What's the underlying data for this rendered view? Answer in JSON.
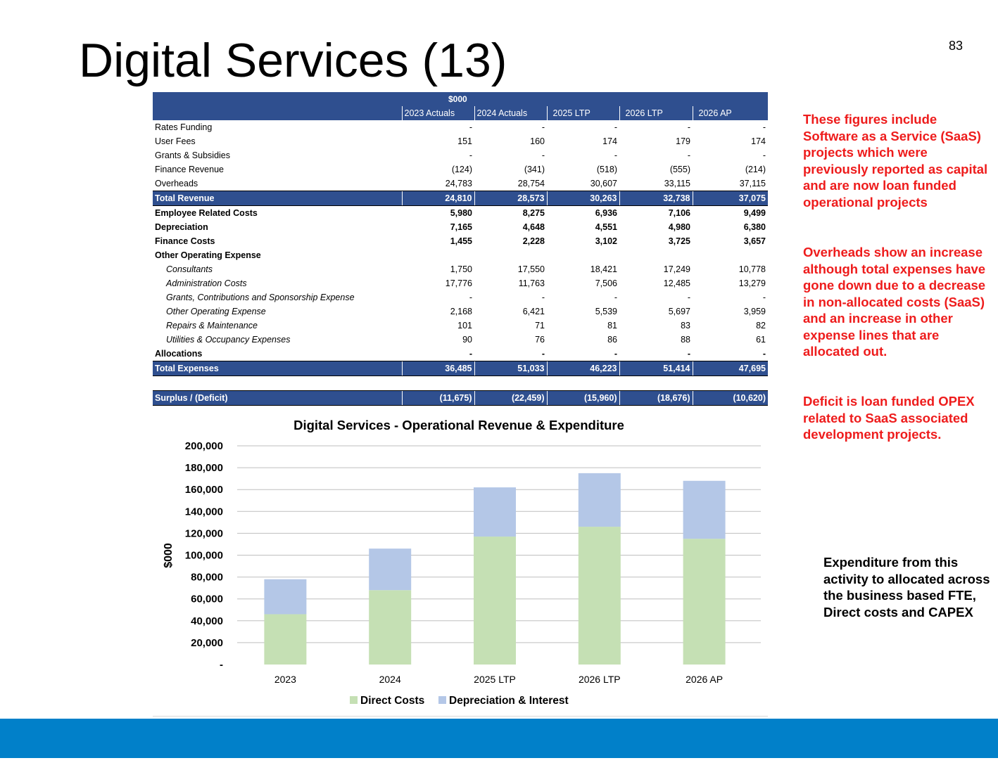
{
  "title": "Digital Services (13)",
  "page_number": "83",
  "table": {
    "unit_header": "$000",
    "columns": [
      "2023 Actuals",
      "2024 Actuals",
      "2025 LTP",
      "2026 LTP",
      "2026 AP"
    ],
    "rows": [
      {
        "label": "Rates Funding",
        "style": "normal",
        "values": [
          "-",
          "-",
          "-",
          "-",
          "-"
        ]
      },
      {
        "label": "User Fees",
        "style": "normal",
        "values": [
          "151",
          "160",
          "174",
          "179",
          "174"
        ]
      },
      {
        "label": "Grants & Subsidies",
        "style": "normal",
        "values": [
          "-",
          "-",
          "-",
          "-",
          "-"
        ]
      },
      {
        "label": "Finance Revenue",
        "style": "normal",
        "values": [
          "(124)",
          "(341)",
          "(518)",
          "(555)",
          "(214)"
        ]
      },
      {
        "label": "Overheads",
        "style": "normal",
        "values": [
          "24,783",
          "28,754",
          "30,607",
          "33,115",
          "37,115"
        ]
      },
      {
        "label": "Total Revenue",
        "style": "total",
        "values": [
          "24,810",
          "28,573",
          "30,263",
          "32,738",
          "37,075"
        ]
      },
      {
        "label": "Employee Related Costs",
        "style": "bold",
        "values": [
          "5,980",
          "8,275",
          "6,936",
          "7,106",
          "9,499"
        ]
      },
      {
        "label": "Depreciation",
        "style": "bold",
        "values": [
          "7,165",
          "4,648",
          "4,551",
          "4,980",
          "6,380"
        ]
      },
      {
        "label": "Finance Costs",
        "style": "bold",
        "values": [
          "1,455",
          "2,228",
          "3,102",
          "3,725",
          "3,657"
        ]
      },
      {
        "label": "Other Operating  Expense",
        "style": "bold",
        "values": [
          "",
          "",
          "",
          "",
          ""
        ]
      },
      {
        "label": "Consultants",
        "style": "indent",
        "values": [
          "1,750",
          "17,550",
          "18,421",
          "17,249",
          "10,778"
        ]
      },
      {
        "label": "Administration Costs",
        "style": "indent",
        "values": [
          "17,776",
          "11,763",
          "7,506",
          "12,485",
          "13,279"
        ]
      },
      {
        "label": "Grants, Contributions and Sponsorship Expense",
        "style": "indent",
        "values": [
          "-",
          "-",
          "-",
          "-",
          "-"
        ]
      },
      {
        "label": "Other Operating Expense",
        "style": "indent",
        "values": [
          "2,168",
          "6,421",
          "5,539",
          "5,697",
          "3,959"
        ]
      },
      {
        "label": "Repairs & Maintenance",
        "style": "indent",
        "values": [
          "101",
          "71",
          "81",
          "83",
          "82"
        ]
      },
      {
        "label": "Utilities & Occupancy Expenses",
        "style": "indent",
        "values": [
          "90",
          "76",
          "86",
          "88",
          "61"
        ]
      },
      {
        "label": "Allocations",
        "style": "bold",
        "values": [
          "-",
          "-",
          "-",
          "-",
          "-"
        ]
      },
      {
        "label": "Total Expenses",
        "style": "total",
        "values": [
          "36,485",
          "51,033",
          "46,223",
          "51,414",
          "47,695"
        ]
      },
      {
        "label": "",
        "style": "spacer",
        "values": [
          "",
          "",
          "",
          "",
          ""
        ]
      },
      {
        "label": "Surplus / (Deficit)",
        "style": "total",
        "values": [
          "(11,675)",
          "(22,459)",
          "(15,960)",
          "(18,676)",
          "(10,620)"
        ]
      }
    ]
  },
  "chart_data": {
    "type": "bar",
    "stacked": true,
    "title": "Digital Services - Operational Revenue & Expenditure",
    "ylabel": "$000",
    "xlabel": "",
    "categories": [
      "2023",
      "2024",
      "2025 LTP",
      "2026 LTP",
      "2026 AP"
    ],
    "series": [
      {
        "name": "Direct Costs",
        "color": "#c5e0b4",
        "values": [
          46000,
          68000,
          117000,
          126000,
          115000
        ]
      },
      {
        "name": "Depreciation & Interest",
        "color": "#b4c7e7",
        "values": [
          32000,
          38000,
          45000,
          49000,
          53000
        ]
      }
    ],
    "ylim": [
      0,
      200000
    ],
    "yticks": [
      "-",
      "20,000",
      "40,000",
      "60,000",
      "80,000",
      "100,000",
      "120,000",
      "140,000",
      "160,000",
      "180,000",
      "200,000"
    ],
    "grid": true,
    "legend_position": "bottom"
  },
  "notes": {
    "red": [
      "These figures include Software as a Service (SaaS) projects which were previously reported as capital and are now loan funded operational projects",
      "Overheads show an increase although total expenses have gone down due to a decrease in non-allocated costs (SaaS) and an increase in other expense lines that are allocated out.",
      "Deficit is loan funded OPEX related to SaaS associated development projects."
    ],
    "black": "Expenditure from this activity to allocated across the business based FTE, Direct costs and CAPEX"
  },
  "colors": {
    "table_header": "#2f4f8f",
    "note_red": "#ee1c1c",
    "bottom_bar": "#0180c9"
  }
}
